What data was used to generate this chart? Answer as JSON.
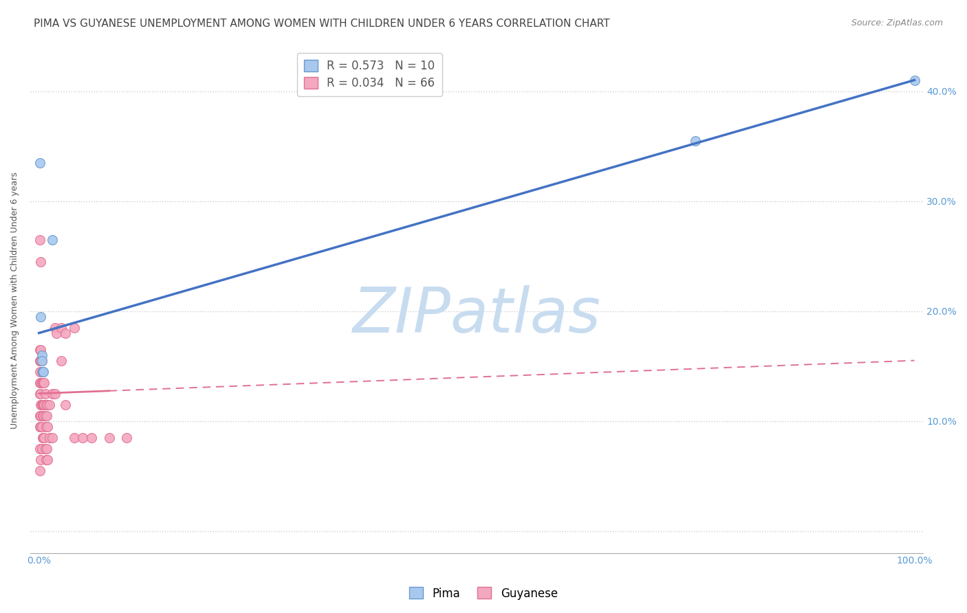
{
  "title": "PIMA VS GUYANESE UNEMPLOYMENT AMONG WOMEN WITH CHILDREN UNDER 6 YEARS CORRELATION CHART",
  "source": "Source: ZipAtlas.com",
  "ylabel": "Unemployment Among Women with Children Under 6 years",
  "background_color": "#ffffff",
  "pima": {
    "label": "Pima",
    "R": 0.573,
    "N": 10,
    "color": "#A8C8EE",
    "border_color": "#6699CC",
    "x": [
      0.001,
      0.002,
      0.015,
      0.003,
      0.003,
      0.004,
      0.004,
      0.005,
      0.75,
      1.0
    ],
    "y": [
      0.335,
      0.195,
      0.265,
      0.16,
      0.155,
      0.145,
      0.145,
      0.145,
      0.355,
      0.41
    ]
  },
  "guyanese": {
    "label": "Guyanese",
    "R": 0.034,
    "N": 66,
    "color": "#F4A8C0",
    "border_color": "#E07090",
    "x": [
      0.001,
      0.001,
      0.001,
      0.001,
      0.001,
      0.001,
      0.001,
      0.001,
      0.001,
      0.001,
      0.002,
      0.002,
      0.002,
      0.002,
      0.002,
      0.002,
      0.002,
      0.002,
      0.003,
      0.003,
      0.003,
      0.003,
      0.003,
      0.003,
      0.004,
      0.004,
      0.004,
      0.004,
      0.004,
      0.005,
      0.005,
      0.005,
      0.005,
      0.006,
      0.006,
      0.006,
      0.007,
      0.007,
      0.007,
      0.008,
      0.008,
      0.008,
      0.009,
      0.009,
      0.01,
      0.01,
      0.01,
      0.012,
      0.012,
      0.015,
      0.015,
      0.018,
      0.018,
      0.02,
      0.025,
      0.025,
      0.03,
      0.03,
      0.04,
      0.04,
      0.05,
      0.06,
      0.08,
      0.1,
      0.001,
      0.002
    ],
    "y": [
      0.165,
      0.155,
      0.155,
      0.145,
      0.135,
      0.125,
      0.105,
      0.095,
      0.075,
      0.055,
      0.165,
      0.155,
      0.135,
      0.125,
      0.115,
      0.105,
      0.095,
      0.065,
      0.155,
      0.145,
      0.135,
      0.115,
      0.095,
      0.075,
      0.145,
      0.135,
      0.115,
      0.105,
      0.085,
      0.135,
      0.115,
      0.105,
      0.085,
      0.135,
      0.115,
      0.085,
      0.125,
      0.105,
      0.075,
      0.115,
      0.095,
      0.065,
      0.105,
      0.075,
      0.115,
      0.095,
      0.065,
      0.115,
      0.085,
      0.125,
      0.085,
      0.185,
      0.125,
      0.18,
      0.185,
      0.155,
      0.18,
      0.115,
      0.185,
      0.085,
      0.085,
      0.085,
      0.085,
      0.085,
      0.265,
      0.245
    ]
  },
  "pima_line": {
    "x0": 0.0,
    "y0": 0.18,
    "x1": 1.0,
    "y1": 0.41,
    "color": "#4472C4",
    "linewidth": 2.5,
    "solid_to": 0.75
  },
  "guyanese_line": {
    "x0": 0.0,
    "y0": 0.125,
    "x1": 1.0,
    "y1": 0.155,
    "color": "#E07090",
    "linewidth": 2.0,
    "solid_to": 0.08
  },
  "xlim": [
    -0.01,
    1.01
  ],
  "ylim": [
    -0.02,
    0.44
  ],
  "xticks": [
    0.0,
    0.1,
    0.2,
    0.3,
    0.4,
    0.5,
    0.6,
    0.7,
    0.8,
    0.9,
    1.0
  ],
  "yticks": [
    0.0,
    0.1,
    0.2,
    0.3,
    0.4
  ],
  "ytick_labels": [
    "",
    "10.0%",
    "20.0%",
    "30.0%",
    "40.0%"
  ],
  "xtick_labels": [
    "0.0%",
    "",
    "",
    "",
    "",
    "",
    "",
    "",
    "",
    "",
    "100.0%"
  ],
  "grid_color": "#CCCCCC",
  "axis_color": "#5A9BD5",
  "title_color": "#444444",
  "title_fontsize": 11,
  "label_fontsize": 9,
  "tick_fontsize": 10,
  "legend_fontsize": 12,
  "source_fontsize": 9,
  "marker_size": 100,
  "watermark_text": "ZIPatlas",
  "watermark_color": "#C8DCF0",
  "watermark_fontsize": 65
}
